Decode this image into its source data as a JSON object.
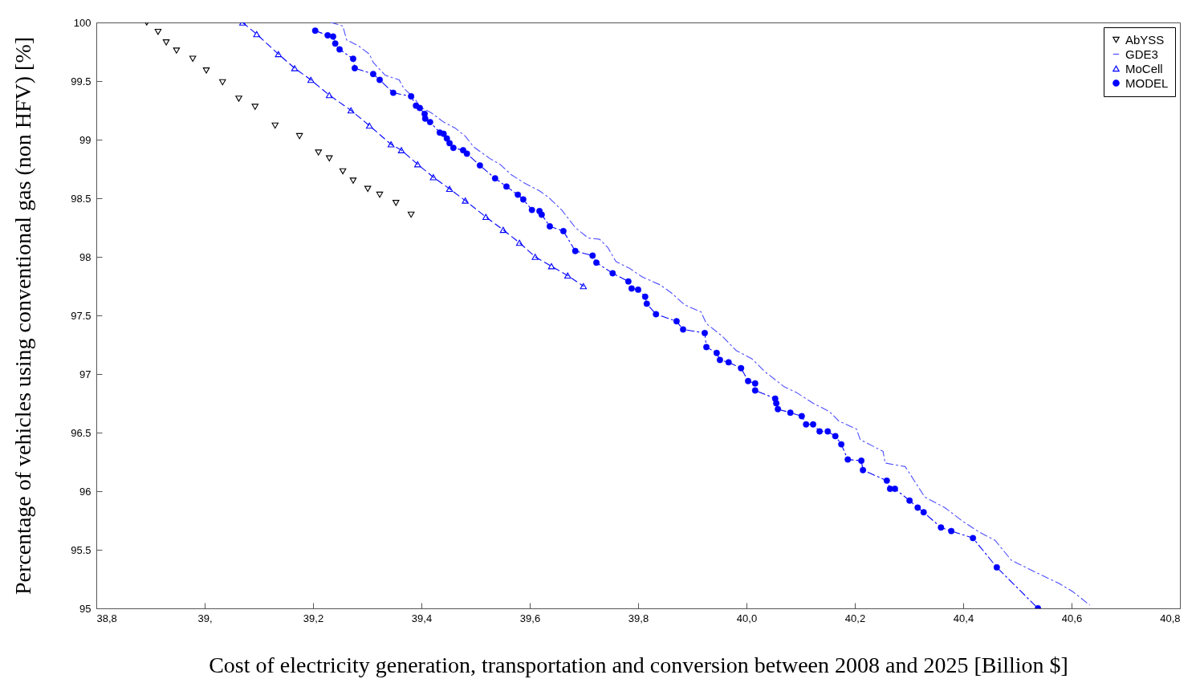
{
  "chart_data": {
    "type": "scatter",
    "xlabel": "Cost of electricity generation, transportation and conversion between 2008 and 2025 [Billion $]",
    "ylabel": "Percentage of vehicles using conventional gas (non HFV) [%]",
    "xlim": [
      38.8,
      40.8
    ],
    "xticks": [
      {
        "value": 38.8,
        "label": "38,8"
      },
      {
        "value": 39.0,
        "label": "39,"
      },
      {
        "value": 39.2,
        "label": "39,2"
      },
      {
        "value": 39.4,
        "label": "39,4"
      },
      {
        "value": 39.6,
        "label": "39,6"
      },
      {
        "value": 39.8,
        "label": "39,8"
      },
      {
        "value": 40.0,
        "label": "40,0"
      },
      {
        "value": 40.2,
        "label": "40,2"
      },
      {
        "value": 40.4,
        "label": "40,4"
      },
      {
        "value": 40.6,
        "label": "40,6"
      },
      {
        "value": 40.8,
        "label": "40,8"
      }
    ],
    "ylim": [
      95,
      100
    ],
    "yticks": [
      95,
      95.5,
      96,
      96.5,
      97,
      97.5,
      98,
      98.5,
      99,
      99.5,
      100
    ],
    "grid": false,
    "legend": "top right",
    "series": [
      {
        "name": "AbYSS",
        "marker": "triangle-down",
        "color": "#000000",
        "x": [
          38.893,
          38.914,
          38.929,
          38.948,
          38.978,
          39.003,
          39.033,
          39.063,
          39.093,
          39.13,
          39.175,
          39.21,
          39.23,
          39.255,
          39.274,
          39.301,
          39.323,
          39.353,
          39.381
        ],
        "values": [
          100.0,
          99.92,
          99.83,
          99.76,
          99.69,
          99.59,
          99.49,
          99.35,
          99.28,
          99.12,
          99.03,
          98.89,
          98.84,
          98.73,
          98.65,
          98.58,
          98.53,
          98.46,
          98.36
        ]
      },
      {
        "name": "GDE3",
        "type": "line",
        "marker": "none",
        "line_style": "dashdot",
        "color": "#4d4dff",
        "x": [
          39.233,
          39.255,
          39.262,
          39.284,
          39.304,
          39.311,
          39.333,
          39.359,
          39.367,
          39.388,
          39.397,
          39.418,
          39.441,
          39.462,
          39.481,
          39.496,
          39.526,
          39.545,
          39.566,
          39.59,
          39.619,
          39.634,
          39.659,
          39.684,
          39.708,
          39.729,
          39.744,
          39.759,
          39.785,
          39.807,
          39.841,
          39.862,
          39.886,
          39.916,
          39.926,
          39.956,
          39.981,
          40.01,
          40.034,
          40.07,
          40.093,
          40.123,
          40.153,
          40.17,
          40.203,
          40.21,
          40.252,
          40.256,
          40.293,
          40.329,
          40.366,
          40.4,
          40.43,
          40.459,
          40.489,
          40.533,
          40.578,
          40.603,
          40.633
        ],
        "values": [
          100.0,
          99.97,
          99.85,
          99.8,
          99.73,
          99.66,
          99.55,
          99.51,
          99.44,
          99.35,
          99.28,
          99.23,
          99.15,
          99.1,
          99.03,
          98.94,
          98.84,
          98.79,
          98.7,
          98.63,
          98.56,
          98.51,
          98.4,
          98.25,
          98.16,
          98.15,
          98.08,
          97.96,
          97.9,
          97.83,
          97.76,
          97.69,
          97.59,
          97.53,
          97.43,
          97.32,
          97.2,
          97.13,
          97.02,
          96.89,
          96.84,
          96.75,
          96.68,
          96.6,
          96.53,
          96.44,
          96.34,
          96.24,
          96.21,
          95.95,
          95.86,
          95.74,
          95.65,
          95.58,
          95.41,
          95.31,
          95.21,
          95.14,
          95.03
        ]
      },
      {
        "name": "MoCell",
        "type": "line",
        "marker": "triangle",
        "line_style": "dashed",
        "color": "#0000ff",
        "x": [
          39.07,
          39.096,
          39.136,
          39.166,
          39.196,
          39.23,
          39.27,
          39.304,
          39.344,
          39.363,
          39.393,
          39.422,
          39.452,
          39.481,
          39.519,
          39.551,
          39.581,
          39.61,
          39.64,
          39.67,
          39.699
        ],
        "values": [
          100.0,
          99.9,
          99.73,
          99.61,
          99.51,
          99.38,
          99.25,
          99.12,
          98.96,
          98.91,
          98.79,
          98.68,
          98.58,
          98.48,
          98.34,
          98.23,
          98.12,
          98.0,
          97.92,
          97.84,
          97.75
        ]
      },
      {
        "name": "MODEL",
        "type": "line",
        "marker": "circle",
        "line_style": "dashdot",
        "color": "#0000ff",
        "x": [
          39.204,
          39.227,
          39.237,
          39.241,
          39.249,
          39.274,
          39.277,
          39.311,
          39.323,
          39.348,
          39.381,
          39.39,
          39.397,
          39.406,
          39.407,
          39.416,
          39.434,
          39.441,
          39.447,
          39.452,
          39.459,
          39.477,
          39.484,
          39.508,
          39.536,
          39.557,
          39.578,
          39.588,
          39.604,
          39.618,
          39.622,
          39.637,
          39.662,
          39.684,
          39.716,
          39.723,
          39.753,
          39.782,
          39.788,
          39.8,
          39.813,
          39.816,
          39.833,
          39.871,
          39.883,
          39.923,
          39.926,
          39.945,
          39.951,
          39.967,
          39.99,
          40.003,
          40.016,
          40.016,
          40.053,
          40.055,
          40.058,
          40.081,
          40.102,
          40.11,
          40.123,
          40.135,
          40.15,
          40.164,
          40.175,
          40.187,
          40.212,
          40.215,
          40.259,
          40.265,
          40.274,
          40.301,
          40.316,
          40.327,
          40.359,
          40.378,
          40.418,
          40.462,
          40.538
        ],
        "values": [
          99.93,
          99.89,
          99.88,
          99.82,
          99.77,
          99.69,
          99.61,
          99.56,
          99.51,
          99.4,
          99.37,
          99.29,
          99.27,
          99.22,
          99.18,
          99.15,
          99.06,
          99.05,
          99.01,
          98.97,
          98.93,
          98.91,
          98.88,
          98.78,
          98.67,
          98.6,
          98.53,
          98.49,
          98.4,
          98.39,
          98.36,
          98.26,
          98.22,
          98.05,
          98.01,
          97.95,
          97.86,
          97.79,
          97.73,
          97.72,
          97.66,
          97.6,
          97.51,
          97.45,
          97.38,
          97.35,
          97.23,
          97.18,
          97.12,
          97.1,
          97.05,
          96.94,
          96.92,
          96.86,
          96.79,
          96.75,
          96.7,
          96.67,
          96.64,
          96.57,
          96.57,
          96.51,
          96.51,
          96.47,
          96.4,
          96.27,
          96.26,
          96.18,
          96.09,
          96.02,
          96.02,
          95.92,
          95.86,
          95.82,
          95.69,
          95.66,
          95.6,
          95.35,
          95.0
        ]
      }
    ]
  }
}
